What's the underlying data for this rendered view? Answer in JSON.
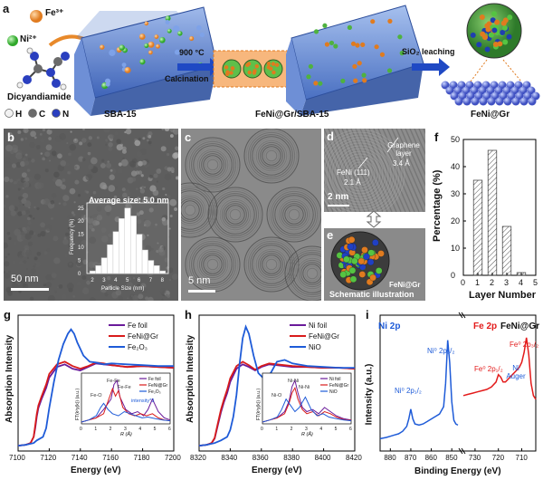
{
  "panels": {
    "a": {
      "label": "a",
      "fe_label": "Fe³⁺",
      "ni_label": "Ni²⁺",
      "precursor_label": "Dicyandiamide",
      "legend": [
        {
          "symbol": "H",
          "label": "H",
          "color": "#f2f2f2"
        },
        {
          "symbol": "C",
          "label": "C",
          "color": "#6b6b6b"
        },
        {
          "symbol": "N",
          "label": "N",
          "color": "#2a3fbf"
        }
      ],
      "sba_label": "SBA-15",
      "step1_top": "900 °C",
      "step1_bottom": "Calcination",
      "intermediate_label": "FeNi@Gr/SBA-15",
      "step2_label": "SiO₂ leaching",
      "product_label": "FeNi@Gr"
    },
    "b": {
      "label": "b",
      "avg_text": "Average size: 5.0 nm",
      "scale_bar": "50 nm",
      "inset": {
        "xlabel": "Particle Size (nm)",
        "ylabel": "Frequency (%)",
        "x_ticks": [
          "2",
          "3",
          "4",
          "5",
          "6",
          "7",
          "8"
        ],
        "y_ticks": [
          "0",
          "5",
          "10",
          "15",
          "20",
          "25"
        ]
      }
    },
    "c": {
      "label": "c",
      "scale_bar": "5 nm"
    },
    "d": {
      "label": "d",
      "fe_ni_label": "FeNi (111)",
      "fe_ni_value": "2.1 Å",
      "gr_label": "Graphene layer",
      "gr_value": "3.4 Å",
      "scale_bar": "2 nm"
    },
    "e": {
      "label": "e",
      "sphere_label": "FeNi@Gr",
      "caption": "Schematic illustration"
    },
    "f": {
      "label": "f"
    },
    "g": {
      "label": "g"
    },
    "h": {
      "label": "h"
    },
    "i": {
      "label": "i",
      "ni_title": "Ni 2p",
      "fe_title": "Fe 2p",
      "sample": "FeNi@Gr",
      "ylabel": "Intensity (a.u.)",
      "xlabel": "Binding Energy (eV)",
      "peaks": [
        "Ni⁰ 2p₁/₂",
        "Ni⁰ 2p₃/₂",
        "Fe⁰ 2p₁/₂",
        "Ni Auger",
        "Fe⁰ 2p₃/₂"
      ],
      "ni_ticks": [
        "880",
        "870",
        "860",
        "850"
      ],
      "fe_ticks": [
        "730",
        "720",
        "710"
      ]
    }
  },
  "chart_data": [
    {
      "id": "b-inset",
      "type": "bar",
      "categories": [
        2,
        2.5,
        3,
        3.5,
        4,
        4.5,
        5,
        5.5,
        6,
        6.5,
        7,
        7.5,
        8
      ],
      "values": [
        1,
        3,
        6,
        11,
        16,
        21,
        25,
        22,
        15,
        9,
        5,
        3,
        1
      ],
      "xlabel": "Particle Size (nm)",
      "ylabel": "Frequency (%)",
      "xlim": [
        1.5,
        8.5
      ],
      "ylim": [
        0,
        27
      ]
    },
    {
      "id": "f",
      "type": "bar",
      "categories": [
        1,
        2,
        3,
        4
      ],
      "values": [
        35,
        46,
        18,
        1
      ],
      "xlabel": "Layer Number",
      "ylabel": "Percentage (%)",
      "xlim": [
        0,
        5
      ],
      "ylim": [
        0,
        50
      ],
      "x_ticks": [
        0,
        1,
        2,
        3,
        4,
        5
      ],
      "y_ticks": [
        0,
        10,
        20,
        30,
        40,
        50
      ]
    },
    {
      "id": "g",
      "type": "line",
      "xlabel": "Energy (eV)",
      "ylabel": "Absorption Intensity",
      "xlim": [
        7100,
        7200
      ],
      "x_ticks": [
        7100,
        7120,
        7140,
        7160,
        7180,
        7200
      ],
      "legend": "top-right",
      "series": [
        {
          "name": "Fe foil",
          "color": "#6a1b9a",
          "x": [
            7100,
            7105,
            7108,
            7110,
            7111,
            7112,
            7113,
            7115,
            7118,
            7120,
            7125,
            7130,
            7135,
            7140,
            7145,
            7150,
            7155,
            7160,
            7170,
            7180,
            7190,
            7200
          ],
          "y": [
            0.02,
            0.03,
            0.05,
            0.12,
            0.22,
            0.35,
            0.45,
            0.55,
            0.68,
            0.8,
            0.92,
            0.95,
            0.9,
            0.88,
            0.92,
            0.96,
            0.95,
            0.94,
            0.92,
            0.93,
            0.92,
            0.91
          ]
        },
        {
          "name": "FeNi@Gr",
          "color": "#d81b1b",
          "x": [
            7100,
            7105,
            7108,
            7110,
            7111,
            7112,
            7113,
            7115,
            7118,
            7120,
            7125,
            7130,
            7135,
            7140,
            7145,
            7150,
            7155,
            7160,
            7170,
            7180,
            7190,
            7200
          ],
          "y": [
            0.02,
            0.03,
            0.05,
            0.12,
            0.25,
            0.38,
            0.48,
            0.58,
            0.72,
            0.84,
            0.95,
            0.98,
            0.93,
            0.9,
            0.93,
            0.97,
            0.96,
            0.94,
            0.92,
            0.93,
            0.92,
            0.91
          ]
        },
        {
          "name": "Fe₂O₃",
          "color": "#1e5bd8",
          "x": [
            7100,
            7105,
            7110,
            7112,
            7114,
            7116,
            7118,
            7120,
            7123,
            7126,
            7129,
            7132,
            7134,
            7136,
            7138,
            7142,
            7146,
            7150,
            7155,
            7160,
            7170,
            7180,
            7190,
            7200
          ],
          "y": [
            0.02,
            0.03,
            0.05,
            0.08,
            0.1,
            0.12,
            0.22,
            0.45,
            0.75,
            1.0,
            1.18,
            1.3,
            1.35,
            1.3,
            1.2,
            1.05,
            0.98,
            0.97,
            0.95,
            0.96,
            0.95,
            0.94,
            0.93,
            0.93
          ]
        }
      ],
      "inset": {
        "xlabel": "R (Å)",
        "ylabel": "FT(k³χ(k)) (a.u.)",
        "xlim": [
          0,
          6
        ],
        "legend": [
          "Fe foil",
          "FeNi@Gr",
          "Fe₂O₃"
        ],
        "annotations": [
          "Fe-Fe",
          "Fe-Fe",
          "Fe-O",
          "intensity*3"
        ],
        "series": [
          {
            "name": "Fe foil",
            "color": "#6a1b9a",
            "x": [
              0,
              0.5,
              1,
              1.5,
              2,
              2.2,
              2.4,
              2.6,
              3,
              3.4,
              3.8,
              4.2,
              4.5,
              4.8,
              5.2,
              5.6,
              6
            ],
            "y": [
              0,
              0.05,
              0.1,
              0.3,
              0.55,
              0.9,
              1.0,
              0.6,
              0.3,
              0.2,
              0.25,
              0.15,
              0.3,
              0.55,
              0.25,
              0.1,
              0.05
            ]
          },
          {
            "name": "FeNi@Gr",
            "color": "#d81b1b",
            "x": [
              0,
              0.5,
              1,
              1.5,
              1.8,
              2.1,
              2.3,
              2.5,
              2.8,
              3.2,
              3.6,
              4,
              4.4,
              4.8,
              5.2,
              5.6,
              6
            ],
            "y": [
              0,
              0.05,
              0.1,
              0.2,
              0.5,
              0.8,
              0.62,
              0.75,
              0.35,
              0.2,
              0.15,
              0.2,
              0.15,
              0.2,
              0.1,
              0.05,
              0.03
            ]
          },
          {
            "name": "Fe₂O₃",
            "color": "#1e5bd8",
            "x": [
              0,
              0.5,
              1,
              1.3,
              1.5,
              1.8,
              2.1,
              2.5,
              2.9,
              3.3,
              3.7,
              4.1,
              4.5,
              5,
              5.5,
              6
            ],
            "y": [
              0,
              0.05,
              0.15,
              0.35,
              0.45,
              0.3,
              0.2,
              0.15,
              0.25,
              0.2,
              0.15,
              0.1,
              0.12,
              0.08,
              0.05,
              0.03
            ]
          }
        ]
      }
    },
    {
      "id": "h",
      "type": "line",
      "xlabel": "Energy (eV)",
      "ylabel": "Absorption Intensity",
      "xlim": [
        8320,
        8420
      ],
      "x_ticks": [
        8320,
        8340,
        8360,
        8380,
        8400,
        8420
      ],
      "legend": "top-right",
      "series": [
        {
          "name": "Ni foil",
          "color": "#6a1b9a",
          "x": [
            8320,
            8325,
            8328,
            8330,
            8332,
            8334,
            8336,
            8338,
            8340,
            8344,
            8348,
            8352,
            8356,
            8360,
            8365,
            8370,
            8380,
            8390,
            8400,
            8410,
            8420
          ],
          "y": [
            0.02,
            0.03,
            0.05,
            0.1,
            0.25,
            0.4,
            0.52,
            0.62,
            0.75,
            0.9,
            0.95,
            0.92,
            0.88,
            0.92,
            0.95,
            0.94,
            0.92,
            0.92,
            0.91,
            0.91,
            0.9
          ]
        },
        {
          "name": "FeNi@Gr",
          "color": "#d81b1b",
          "x": [
            8320,
            8325,
            8328,
            8330,
            8332,
            8334,
            8336,
            8338,
            8340,
            8344,
            8348,
            8352,
            8356,
            8360,
            8365,
            8370,
            8380,
            8390,
            8400,
            8410,
            8420
          ],
          "y": [
            0.02,
            0.03,
            0.05,
            0.11,
            0.27,
            0.43,
            0.55,
            0.66,
            0.79,
            0.93,
            0.98,
            0.94,
            0.89,
            0.93,
            0.96,
            0.95,
            0.93,
            0.92,
            0.91,
            0.91,
            0.9
          ]
        },
        {
          "name": "NiO",
          "color": "#1e5bd8",
          "x": [
            8320,
            8325,
            8330,
            8334,
            8338,
            8340,
            8342,
            8344,
            8346,
            8348,
            8350,
            8352,
            8355,
            8358,
            8362,
            8366,
            8370,
            8375,
            8380,
            8390,
            8400,
            8410,
            8420
          ],
          "y": [
            0.02,
            0.03,
            0.05,
            0.08,
            0.12,
            0.2,
            0.35,
            0.6,
            0.95,
            1.25,
            1.38,
            1.3,
            1.05,
            0.85,
            0.78,
            0.85,
            0.98,
            1.0,
            0.96,
            0.93,
            0.92,
            0.91,
            0.91
          ]
        }
      ],
      "inset": {
        "xlabel": "R (Å)",
        "ylabel": "FT(k³χ(k)) (a.u.)",
        "xlim": [
          0,
          6
        ],
        "legend": [
          "Ni foil",
          "FeNi@Gr",
          "NiO"
        ],
        "annotations": [
          "Ni-Ni",
          "Ni-Ni",
          "Ni-O"
        ],
        "series": [
          {
            "name": "Ni foil",
            "color": "#6a1b9a",
            "x": [
              0,
              0.5,
              1,
              1.5,
              1.8,
              2.0,
              2.2,
              2.4,
              2.7,
              3.0,
              3.4,
              3.8,
              4.2,
              4.6,
              5,
              5.5,
              6
            ],
            "y": [
              0,
              0.05,
              0.1,
              0.25,
              0.5,
              0.85,
              1.0,
              0.7,
              0.35,
              0.25,
              0.3,
              0.2,
              0.35,
              0.25,
              0.15,
              0.08,
              0.05
            ]
          },
          {
            "name": "FeNi@Gr",
            "color": "#d81b1b",
            "x": [
              0,
              0.5,
              1,
              1.5,
              1.8,
              2.0,
              2.2,
              2.4,
              2.7,
              3.0,
              3.4,
              3.8,
              4.2,
              4.6,
              5,
              5.5,
              6
            ],
            "y": [
              0,
              0.05,
              0.1,
              0.2,
              0.45,
              0.7,
              0.82,
              0.55,
              0.3,
              0.2,
              0.25,
              0.15,
              0.25,
              0.2,
              0.12,
              0.06,
              0.04
            ]
          },
          {
            "name": "NiO",
            "color": "#1e5bd8",
            "x": [
              0,
              0.5,
              1,
              1.3,
              1.6,
              1.9,
              2.2,
              2.5,
              2.9,
              3.3,
              3.7,
              4.1,
              4.5,
              5,
              5.5,
              6
            ],
            "y": [
              0,
              0.05,
              0.12,
              0.3,
              0.55,
              0.4,
              0.25,
              0.35,
              0.6,
              0.3,
              0.15,
              0.2,
              0.12,
              0.08,
              0.05,
              0.03
            ]
          }
        ]
      }
    },
    {
      "id": "i",
      "type": "line",
      "xlabel": "Binding Energy (eV)",
      "ylabel": "Intensity (a.u.)",
      "series": [
        {
          "name": "Ni 2p",
          "color": "#1e5bd8",
          "x": [
            885,
            882,
            880,
            878,
            876,
            874,
            872,
            871,
            870,
            869,
            868,
            866,
            864,
            862,
            860,
            858,
            856,
            854,
            853,
            852,
            851,
            850,
            849,
            848,
            847
          ],
          "y": [
            0.1,
            0.11,
            0.12,
            0.13,
            0.14,
            0.16,
            0.2,
            0.26,
            0.34,
            0.26,
            0.22,
            0.21,
            0.22,
            0.24,
            0.26,
            0.28,
            0.3,
            0.36,
            0.55,
            0.9,
            0.72,
            0.4,
            0.25,
            0.22,
            0.21
          ]
        },
        {
          "name": "Fe 2p",
          "color": "#e31b1b",
          "x": [
            735,
            733,
            731,
            729,
            727,
            725,
            723,
            721,
            720,
            719,
            718,
            717,
            716,
            715,
            714,
            713,
            712,
            711,
            710,
            709,
            708,
            707,
            706,
            705,
            704
          ],
          "y": [
            0.45,
            0.46,
            0.47,
            0.48,
            0.49,
            0.5,
            0.52,
            0.56,
            0.62,
            0.6,
            0.56,
            0.56,
            0.58,
            0.6,
            0.62,
            0.64,
            0.66,
            0.68,
            0.72,
            0.8,
            0.92,
            0.78,
            0.55,
            0.45,
            0.42
          ]
        }
      ]
    }
  ]
}
